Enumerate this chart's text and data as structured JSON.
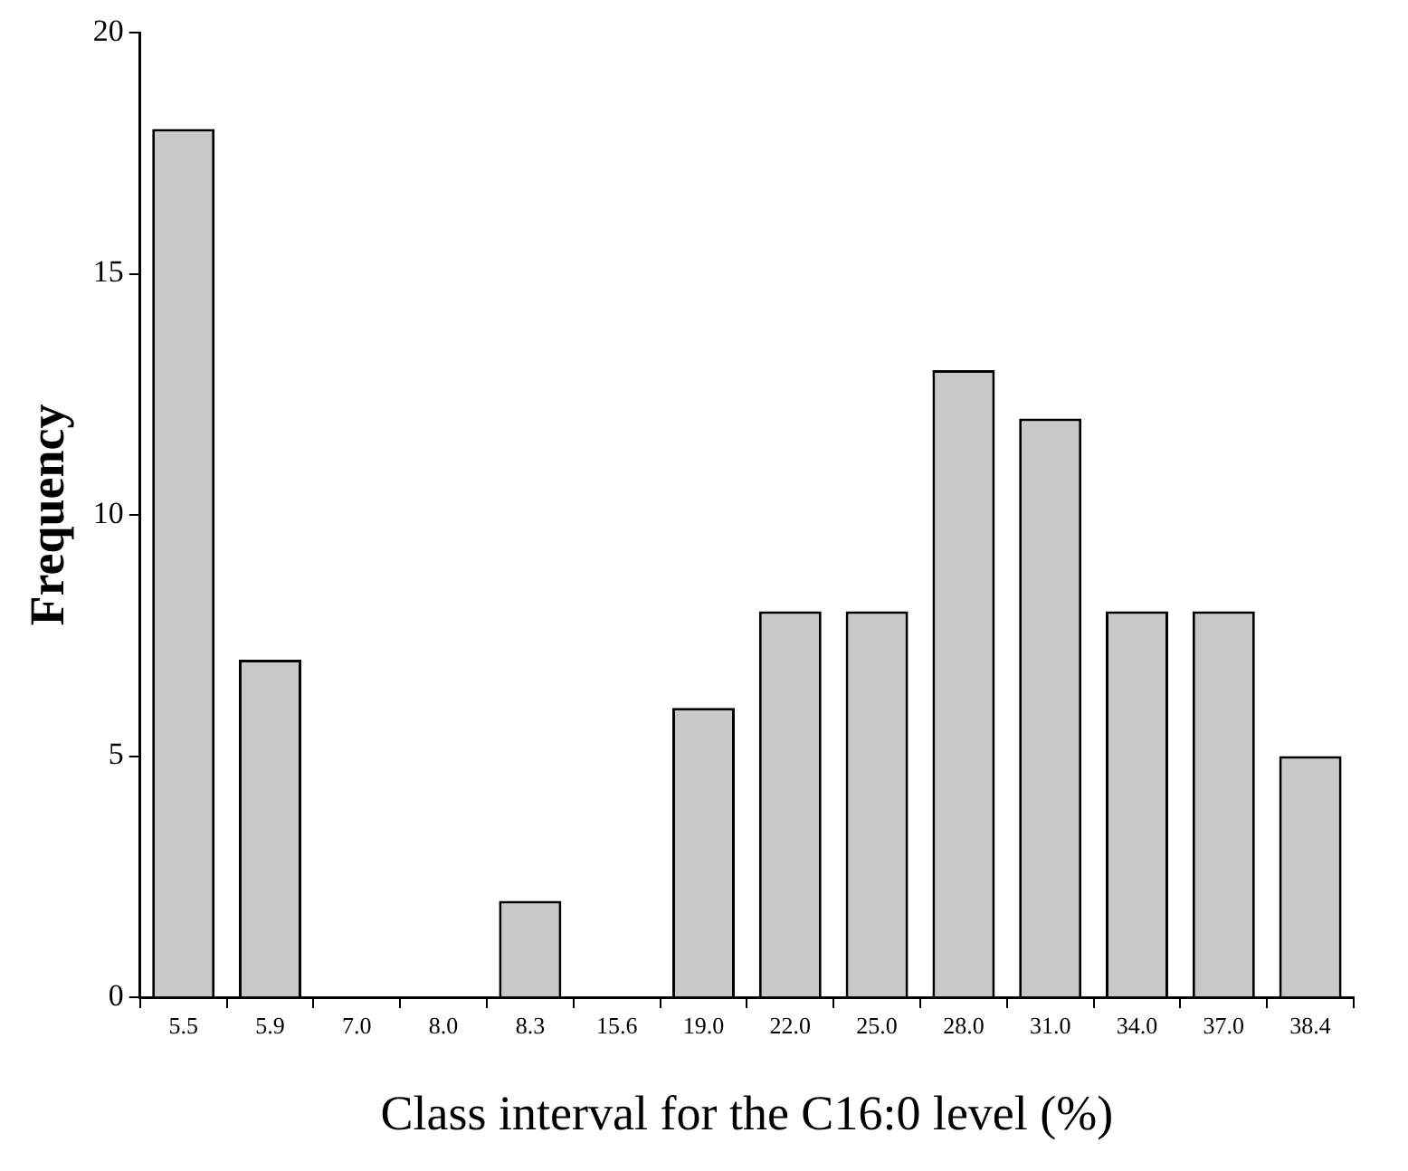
{
  "chart_data": {
    "type": "bar",
    "xlabel": "Class interval for the C16:0 level (%)",
    "ylabel": "Frequency",
    "categories": [
      "5.5",
      "5.9",
      "7.0",
      "8.0",
      "8.3",
      "15.6",
      "19.0",
      "22.0",
      "25.0",
      "28.0",
      "31.0",
      "34.0",
      "37.0",
      "38.4"
    ],
    "values": [
      18,
      7,
      0,
      0,
      2,
      0,
      6,
      8,
      8,
      13,
      12,
      8,
      8,
      5
    ],
    "color": "#c8c8c8",
    "ylim": [
      0,
      20
    ],
    "yticks": [
      0,
      5,
      10,
      15,
      20
    ],
    "grid": false,
    "legend": false
  }
}
